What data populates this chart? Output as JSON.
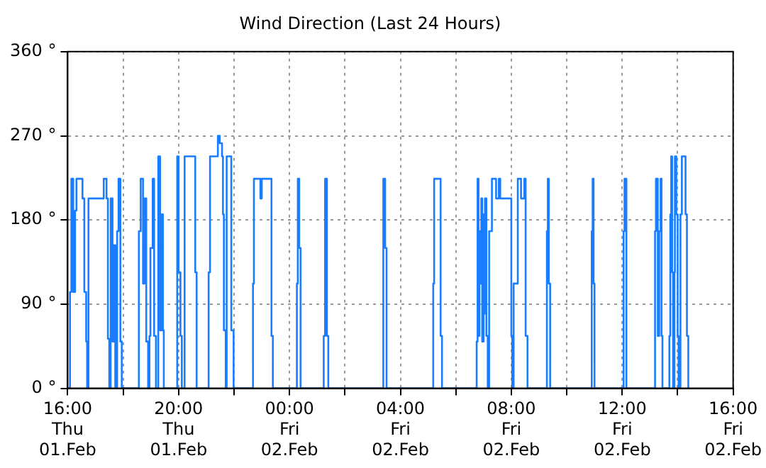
{
  "chart_data": {
    "type": "step",
    "title": "Wind Direction (Last 24 Hours)",
    "grid": true,
    "x": [
      "--02-01T16:00",
      "--02-01T16:05",
      "--02-01T16:08",
      "--02-01T16:12",
      "--02-01T16:16",
      "--02-01T16:19",
      "--02-01T16:27",
      "--02-01T16:32",
      "--02-01T16:36",
      "--02-01T16:40",
      "--02-01T16:42",
      "--02-01T16:45",
      "--02-01T17:12",
      "--02-01T17:18",
      "--02-01T17:24",
      "--02-01T17:27",
      "--02-01T17:30",
      "--02-01T17:33",
      "--02-01T17:37",
      "--02-01T17:40",
      "--02-01T17:43",
      "--02-01T17:47",
      "--02-01T17:50",
      "--02-01T17:54",
      "--02-01T17:57",
      "--02-01T18:34",
      "--02-01T18:38",
      "--02-01T18:43",
      "--02-01T18:46",
      "--02-01T18:50",
      "--02-01T18:54",
      "--02-01T18:57",
      "--02-01T18:59",
      "--02-01T19:04",
      "--02-01T19:07",
      "--02-01T19:11",
      "--02-01T19:16",
      "--02-01T19:20",
      "--02-01T19:23",
      "--02-01T19:26",
      "--02-01T19:28",
      "--02-01T19:57",
      "--02-01T20:00",
      "--02-01T20:04",
      "--02-01T20:07",
      "--02-01T20:13",
      "--02-01T20:32",
      "--02-01T20:36",
      "--02-01T20:39",
      "--02-01T21:05",
      "--02-01T21:08",
      "--02-01T21:21",
      "--02-01T21:25",
      "--02-01T21:29",
      "--02-01T21:34",
      "--02-01T21:36",
      "--02-01T21:38",
      "--02-01T21:42",
      "--02-01T21:44",
      "--02-01T21:50",
      "--02-01T21:54",
      "--02-01T21:59",
      "--02-01T22:41",
      "--02-01T22:43",
      "--02-01T22:54",
      "--02-01T22:57",
      "--02-01T23:00",
      "--02-01T23:18",
      "--02-01T23:21",
      "--02-01T23:24",
      "--02-02T00:16",
      "--02-02T00:18",
      "--02-02T00:21",
      "--02-02T00:24",
      "--02-02T01:14",
      "--02-02T01:17",
      "--02-02T01:21",
      "--02-02T01:24",
      "--02-02T03:23",
      "--02-02T03:27",
      "--02-02T03:30",
      "--02-02T05:11",
      "--02-02T05:13",
      "--02-02T05:24",
      "--02-02T05:27",
      "--02-02T05:30",
      "--02-02T06:45",
      "--02-02T06:47",
      "--02-02T06:49",
      "--02-02T06:51",
      "--02-02T06:53",
      "--02-02T06:55",
      "--02-02T06:57",
      "--02-02T07:00",
      "--02-02T07:01",
      "--02-02T07:03",
      "--02-02T07:06",
      "--02-02T07:09",
      "--02-02T07:12",
      "--02-02T07:18",
      "--02-02T07:27",
      "--02-02T07:33",
      "--02-02T07:36",
      "--02-02T07:57",
      "--02-02T08:00",
      "--02-02T08:02",
      "--02-02T08:05",
      "--02-02T08:14",
      "--02-02T08:21",
      "--02-02T08:28",
      "--02-02T08:31",
      "--02-02T08:35",
      "--02-02T09:17",
      "--02-02T09:19",
      "--02-02T09:21",
      "--02-02T09:24",
      "--02-02T10:54",
      "--02-02T10:56",
      "--02-02T10:58",
      "--02-02T11:00",
      "--02-02T12:03",
      "--02-02T12:05",
      "--02-02T12:09",
      "--02-02T13:11",
      "--02-02T13:13",
      "--02-02T13:17",
      "--02-02T13:20",
      "--02-02T13:23",
      "--02-02T13:25",
      "--02-02T13:27",
      "--02-02T13:42",
      "--02-02T13:44",
      "--02-02T13:46",
      "--02-02T13:48",
      "--02-02T13:50",
      "--02-02T13:53",
      "--02-02T13:54",
      "--02-02T13:57",
      "--02-02T14:00",
      "--02-02T14:02",
      "--02-02T14:06",
      "--02-02T14:09",
      "--02-02T14:15",
      "--02-02T14:17",
      "--02-02T14:20",
      "--02-02T14:23"
    ],
    "series": [
      {
        "color": "#1a7dff",
        "values": [
          0,
          103,
          224,
          103,
          190,
          224,
          224,
          203,
          103,
          50,
          0,
          203,
          203,
          224,
          203,
          53,
          0,
          203,
          50,
          153,
          0,
          168,
          224,
          50,
          0,
          168,
          224,
          112,
          203,
          50,
          0,
          56,
          150,
          224,
          56,
          0,
          248,
          62,
          186,
          62,
          0,
          248,
          124,
          56,
          0,
          248,
          248,
          124,
          0,
          124,
          248,
          248,
          270,
          262,
          248,
          186,
          62,
          0,
          248,
          248,
          62,
          0,
          112,
          224,
          224,
          203,
          224,
          224,
          56,
          0,
          112,
          224,
          150,
          0,
          56,
          224,
          56,
          0,
          224,
          150,
          0,
          112,
          224,
          224,
          56,
          0,
          50,
          224,
          56,
          168,
          112,
          203,
          50,
          186,
          80,
          203,
          56,
          0,
          168,
          224,
          203,
          224,
          203,
          203,
          56,
          0,
          112,
          224,
          203,
          224,
          56,
          0,
          168,
          224,
          112,
          0,
          168,
          224,
          112,
          0,
          168,
          224,
          0,
          168,
          224,
          56,
          168,
          224,
          56,
          0,
          56,
          186,
          248,
          124,
          0,
          124,
          248,
          186,
          56,
          0,
          186,
          248,
          248,
          186,
          56,
          0
        ]
      }
    ],
    "xlim": [
      "--02-01T16:00",
      "--02-02T16:00"
    ],
    "xticks": [
      {
        "value": "--02-01T16:00",
        "label": "16:00\nThu\n01.Feb"
      },
      {
        "value": "--02-01T18:00",
        "label": null
      },
      {
        "value": "--02-01T20:00",
        "label": "20:00\nThu\n01.Feb"
      },
      {
        "value": "--02-01T22:00",
        "label": null
      },
      {
        "value": "--02-02T00:00",
        "label": "00:00\nFri\n02.Feb"
      },
      {
        "value": "--02-02T02:00",
        "label": null
      },
      {
        "value": "--02-02T04:00",
        "label": "04:00\nFri\n02.Feb"
      },
      {
        "value": "--02-02T06:00",
        "label": null
      },
      {
        "value": "--02-02T08:00",
        "label": "08:00\nFri\n02.Feb"
      },
      {
        "value": "--02-02T10:00",
        "label": null
      },
      {
        "value": "--02-02T12:00",
        "label": "12:00\nFri\n02.Feb"
      },
      {
        "value": "--02-02T14:00",
        "label": null
      },
      {
        "value": "--02-02T16:00",
        "label": "16:00\nFri\n02.Feb"
      }
    ],
    "ylim": [
      0,
      360
    ],
    "yticks": [
      {
        "value": 0,
        "label": "0 °"
      },
      {
        "value": 90,
        "label": "90 °"
      },
      {
        "value": 180,
        "label": "180 °"
      },
      {
        "value": 270,
        "label": "270 °"
      },
      {
        "value": 360,
        "label": "360 °"
      }
    ]
  }
}
